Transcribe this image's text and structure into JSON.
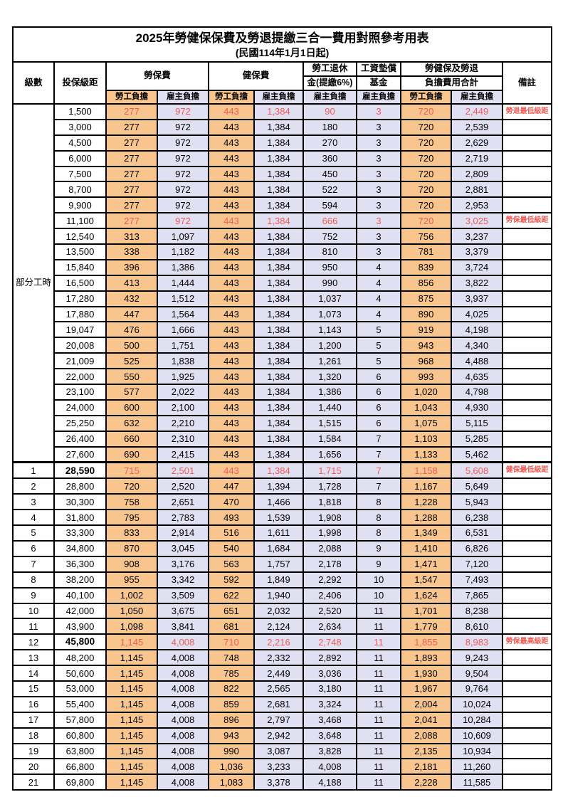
{
  "title": "2025年勞健保保費及勞退提繳三合一費用對照參考用表",
  "subtitle": "(民國114年1月1日起)",
  "colors": {
    "employee_bg": "#F7C58D",
    "employer_bg": "#E1E0F2",
    "red_text": "#F25B55",
    "grid": "#000000"
  },
  "header": {
    "level": "級數",
    "bracket": "投保級距",
    "labor_insurance": "勞保費",
    "health_insurance": "健保費",
    "pension_line1": "勞工退休",
    "pension_line2": "金(提繳6%)",
    "wage_fund_line1": "工資墊償",
    "wage_fund_line2": "基金",
    "total_line1": "勞健保及勞退",
    "total_line2": "負擔費用合計",
    "remark": "備註",
    "employee": "勞工負擔",
    "employer": "雇主負擔"
  },
  "group_label": "部分工時",
  "rows": [
    {
      "level": "",
      "bracket": "1,500",
      "values": [
        "277",
        "972",
        "443",
        "1,384",
        "90",
        "3",
        "720",
        "2,449"
      ],
      "remark": "勞退最低級距",
      "red": true,
      "boldBracket": false,
      "group": "part-time"
    },
    {
      "level": "",
      "bracket": "3,000",
      "values": [
        "277",
        "972",
        "443",
        "1,384",
        "180",
        "3",
        "720",
        "2,539"
      ],
      "remark": "",
      "red": false,
      "boldBracket": false,
      "group": "part-time"
    },
    {
      "level": "",
      "bracket": "4,500",
      "values": [
        "277",
        "972",
        "443",
        "1,384",
        "270",
        "3",
        "720",
        "2,629"
      ],
      "remark": "",
      "red": false,
      "boldBracket": false,
      "group": "part-time"
    },
    {
      "level": "",
      "bracket": "6,000",
      "values": [
        "277",
        "972",
        "443",
        "1,384",
        "360",
        "3",
        "720",
        "2,719"
      ],
      "remark": "",
      "red": false,
      "boldBracket": false,
      "group": "part-time"
    },
    {
      "level": "",
      "bracket": "7,500",
      "values": [
        "277",
        "972",
        "443",
        "1,384",
        "450",
        "3",
        "720",
        "2,809"
      ],
      "remark": "",
      "red": false,
      "boldBracket": false,
      "group": "part-time"
    },
    {
      "level": "",
      "bracket": "8,700",
      "values": [
        "277",
        "972",
        "443",
        "1,384",
        "522",
        "3",
        "720",
        "2,881"
      ],
      "remark": "",
      "red": false,
      "boldBracket": false,
      "group": "part-time"
    },
    {
      "level": "",
      "bracket": "9,900",
      "values": [
        "277",
        "972",
        "443",
        "1,384",
        "594",
        "3",
        "720",
        "2,953"
      ],
      "remark": "",
      "red": false,
      "boldBracket": false,
      "group": "part-time"
    },
    {
      "level": "",
      "bracket": "11,100",
      "values": [
        "277",
        "972",
        "443",
        "1,384",
        "666",
        "3",
        "720",
        "3,025"
      ],
      "remark": "勞保最低級距",
      "red": true,
      "boldBracket": false,
      "group": "part-time"
    },
    {
      "level": "",
      "bracket": "12,540",
      "values": [
        "313",
        "1,097",
        "443",
        "1,384",
        "752",
        "3",
        "756",
        "3,237"
      ],
      "remark": "",
      "red": false,
      "boldBracket": false,
      "group": "part-time"
    },
    {
      "level": "",
      "bracket": "13,500",
      "values": [
        "338",
        "1,182",
        "443",
        "1,384",
        "810",
        "3",
        "781",
        "3,379"
      ],
      "remark": "",
      "red": false,
      "boldBracket": false,
      "group": "part-time"
    },
    {
      "level": "",
      "bracket": "15,840",
      "values": [
        "396",
        "1,386",
        "443",
        "1,384",
        "950",
        "4",
        "839",
        "3,724"
      ],
      "remark": "",
      "red": false,
      "boldBracket": false,
      "group": "part-time"
    },
    {
      "level": "",
      "bracket": "16,500",
      "values": [
        "413",
        "1,444",
        "443",
        "1,384",
        "990",
        "4",
        "856",
        "3,822"
      ],
      "remark": "",
      "red": false,
      "boldBracket": false,
      "group": "part-time"
    },
    {
      "level": "",
      "bracket": "17,280",
      "values": [
        "432",
        "1,512",
        "443",
        "1,384",
        "1,037",
        "4",
        "875",
        "3,937"
      ],
      "remark": "",
      "red": false,
      "boldBracket": false,
      "group": "part-time"
    },
    {
      "level": "",
      "bracket": "17,880",
      "values": [
        "447",
        "1,564",
        "443",
        "1,384",
        "1,073",
        "4",
        "890",
        "4,025"
      ],
      "remark": "",
      "red": false,
      "boldBracket": false,
      "group": "part-time"
    },
    {
      "level": "",
      "bracket": "19,047",
      "values": [
        "476",
        "1,666",
        "443",
        "1,384",
        "1,143",
        "5",
        "919",
        "4,198"
      ],
      "remark": "",
      "red": false,
      "boldBracket": false,
      "group": "part-time"
    },
    {
      "level": "",
      "bracket": "20,008",
      "values": [
        "500",
        "1,751",
        "443",
        "1,384",
        "1,200",
        "5",
        "943",
        "4,340"
      ],
      "remark": "",
      "red": false,
      "boldBracket": false,
      "group": "part-time"
    },
    {
      "level": "",
      "bracket": "21,009",
      "values": [
        "525",
        "1,838",
        "443",
        "1,384",
        "1,261",
        "5",
        "968",
        "4,488"
      ],
      "remark": "",
      "red": false,
      "boldBracket": false,
      "group": "part-time"
    },
    {
      "level": "",
      "bracket": "22,000",
      "values": [
        "550",
        "1,925",
        "443",
        "1,384",
        "1,320",
        "6",
        "993",
        "4,635"
      ],
      "remark": "",
      "red": false,
      "boldBracket": false,
      "group": "part-time"
    },
    {
      "level": "",
      "bracket": "23,100",
      "values": [
        "577",
        "2,022",
        "443",
        "1,384",
        "1,386",
        "6",
        "1,020",
        "4,798"
      ],
      "remark": "",
      "red": false,
      "boldBracket": false,
      "group": "part-time"
    },
    {
      "level": "",
      "bracket": "24,000",
      "values": [
        "600",
        "2,100",
        "443",
        "1,384",
        "1,440",
        "6",
        "1,043",
        "4,930"
      ],
      "remark": "",
      "red": false,
      "boldBracket": false,
      "group": "part-time"
    },
    {
      "level": "",
      "bracket": "25,250",
      "values": [
        "632",
        "2,210",
        "443",
        "1,384",
        "1,515",
        "6",
        "1,075",
        "5,115"
      ],
      "remark": "",
      "red": false,
      "boldBracket": false,
      "group": "part-time"
    },
    {
      "level": "",
      "bracket": "26,400",
      "values": [
        "660",
        "2,310",
        "443",
        "1,384",
        "1,584",
        "7",
        "1,103",
        "5,285"
      ],
      "remark": "",
      "red": false,
      "boldBracket": false,
      "group": "part-time"
    },
    {
      "level": "",
      "bracket": "27,600",
      "values": [
        "690",
        "2,415",
        "443",
        "1,384",
        "1,656",
        "7",
        "1,133",
        "5,462"
      ],
      "remark": "",
      "red": false,
      "boldBracket": false,
      "group": "part-time"
    },
    {
      "level": "1",
      "bracket": "28,590",
      "values": [
        "715",
        "2,501",
        "443",
        "1,384",
        "1,715",
        "7",
        "1,158",
        "5,608"
      ],
      "remark": "健保最低級距",
      "red": true,
      "boldBracket": true,
      "group": "levels",
      "sectionStart": true
    },
    {
      "level": "2",
      "bracket": "28,800",
      "values": [
        "720",
        "2,520",
        "447",
        "1,394",
        "1,728",
        "7",
        "1,167",
        "5,649"
      ],
      "remark": "",
      "red": false,
      "boldBracket": false,
      "group": "levels"
    },
    {
      "level": "3",
      "bracket": "30,300",
      "values": [
        "758",
        "2,651",
        "470",
        "1,466",
        "1,818",
        "8",
        "1,228",
        "5,943"
      ],
      "remark": "",
      "red": false,
      "boldBracket": false,
      "group": "levels"
    },
    {
      "level": "4",
      "bracket": "31,800",
      "values": [
        "795",
        "2,783",
        "493",
        "1,539",
        "1,908",
        "8",
        "1,288",
        "6,238"
      ],
      "remark": "",
      "red": false,
      "boldBracket": false,
      "group": "levels"
    },
    {
      "level": "5",
      "bracket": "33,300",
      "values": [
        "833",
        "2,914",
        "516",
        "1,611",
        "1,998",
        "8",
        "1,349",
        "6,531"
      ],
      "remark": "",
      "red": false,
      "boldBracket": false,
      "group": "levels"
    },
    {
      "level": "6",
      "bracket": "34,800",
      "values": [
        "870",
        "3,045",
        "540",
        "1,684",
        "2,088",
        "9",
        "1,410",
        "6,826"
      ],
      "remark": "",
      "red": false,
      "boldBracket": false,
      "group": "levels"
    },
    {
      "level": "7",
      "bracket": "36,300",
      "values": [
        "908",
        "3,176",
        "563",
        "1,757",
        "2,178",
        "9",
        "1,471",
        "7,120"
      ],
      "remark": "",
      "red": false,
      "boldBracket": false,
      "group": "levels"
    },
    {
      "level": "8",
      "bracket": "38,200",
      "values": [
        "955",
        "3,342",
        "592",
        "1,849",
        "2,292",
        "10",
        "1,547",
        "7,493"
      ],
      "remark": "",
      "red": false,
      "boldBracket": false,
      "group": "levels"
    },
    {
      "level": "9",
      "bracket": "40,100",
      "values": [
        "1,002",
        "3,509",
        "622",
        "1,940",
        "2,406",
        "10",
        "1,624",
        "7,865"
      ],
      "remark": "",
      "red": false,
      "boldBracket": false,
      "group": "levels"
    },
    {
      "level": "10",
      "bracket": "42,000",
      "values": [
        "1,050",
        "3,675",
        "651",
        "2,032",
        "2,520",
        "11",
        "1,701",
        "8,238"
      ],
      "remark": "",
      "red": false,
      "boldBracket": false,
      "group": "levels"
    },
    {
      "level": "11",
      "bracket": "43,900",
      "values": [
        "1,098",
        "3,841",
        "681",
        "2,124",
        "2,634",
        "11",
        "1,779",
        "8,610"
      ],
      "remark": "",
      "red": false,
      "boldBracket": false,
      "group": "levels"
    },
    {
      "level": "12",
      "bracket": "45,800",
      "values": [
        "1,145",
        "4,008",
        "710",
        "2,216",
        "2,748",
        "11",
        "1,855",
        "8,983"
      ],
      "remark": "勞保最高級距",
      "red": true,
      "boldBracket": true,
      "group": "levels"
    },
    {
      "level": "13",
      "bracket": "48,200",
      "values": [
        "1,145",
        "4,008",
        "748",
        "2,332",
        "2,892",
        "11",
        "1,893",
        "9,243"
      ],
      "remark": "",
      "red": false,
      "boldBracket": false,
      "group": "levels"
    },
    {
      "level": "14",
      "bracket": "50,600",
      "values": [
        "1,145",
        "4,008",
        "785",
        "2,449",
        "3,036",
        "11",
        "1,930",
        "9,504"
      ],
      "remark": "",
      "red": false,
      "boldBracket": false,
      "group": "levels"
    },
    {
      "level": "15",
      "bracket": "53,000",
      "values": [
        "1,145",
        "4,008",
        "822",
        "2,565",
        "3,180",
        "11",
        "1,967",
        "9,764"
      ],
      "remark": "",
      "red": false,
      "boldBracket": false,
      "group": "levels"
    },
    {
      "level": "16",
      "bracket": "55,400",
      "values": [
        "1,145",
        "4,008",
        "859",
        "2,681",
        "3,324",
        "11",
        "2,004",
        "10,024"
      ],
      "remark": "",
      "red": false,
      "boldBracket": false,
      "group": "levels"
    },
    {
      "level": "17",
      "bracket": "57,800",
      "values": [
        "1,145",
        "4,008",
        "896",
        "2,797",
        "3,468",
        "11",
        "2,041",
        "10,284"
      ],
      "remark": "",
      "red": false,
      "boldBracket": false,
      "group": "levels"
    },
    {
      "level": "18",
      "bracket": "60,800",
      "values": [
        "1,145",
        "4,008",
        "943",
        "2,942",
        "3,648",
        "11",
        "2,088",
        "10,609"
      ],
      "remark": "",
      "red": false,
      "boldBracket": false,
      "group": "levels"
    },
    {
      "level": "19",
      "bracket": "63,800",
      "values": [
        "1,145",
        "4,008",
        "990",
        "3,087",
        "3,828",
        "11",
        "2,135",
        "10,934"
      ],
      "remark": "",
      "red": false,
      "boldBracket": false,
      "group": "levels"
    },
    {
      "level": "20",
      "bracket": "66,800",
      "values": [
        "1,145",
        "4,008",
        "1,036",
        "3,233",
        "4,008",
        "11",
        "2,181",
        "11,260"
      ],
      "remark": "",
      "red": false,
      "boldBracket": false,
      "group": "levels"
    },
    {
      "level": "21",
      "bracket": "69,800",
      "values": [
        "1,145",
        "4,008",
        "1,083",
        "3,378",
        "4,188",
        "11",
        "2,228",
        "11,585"
      ],
      "remark": "",
      "red": false,
      "boldBracket": false,
      "group": "levels"
    }
  ]
}
